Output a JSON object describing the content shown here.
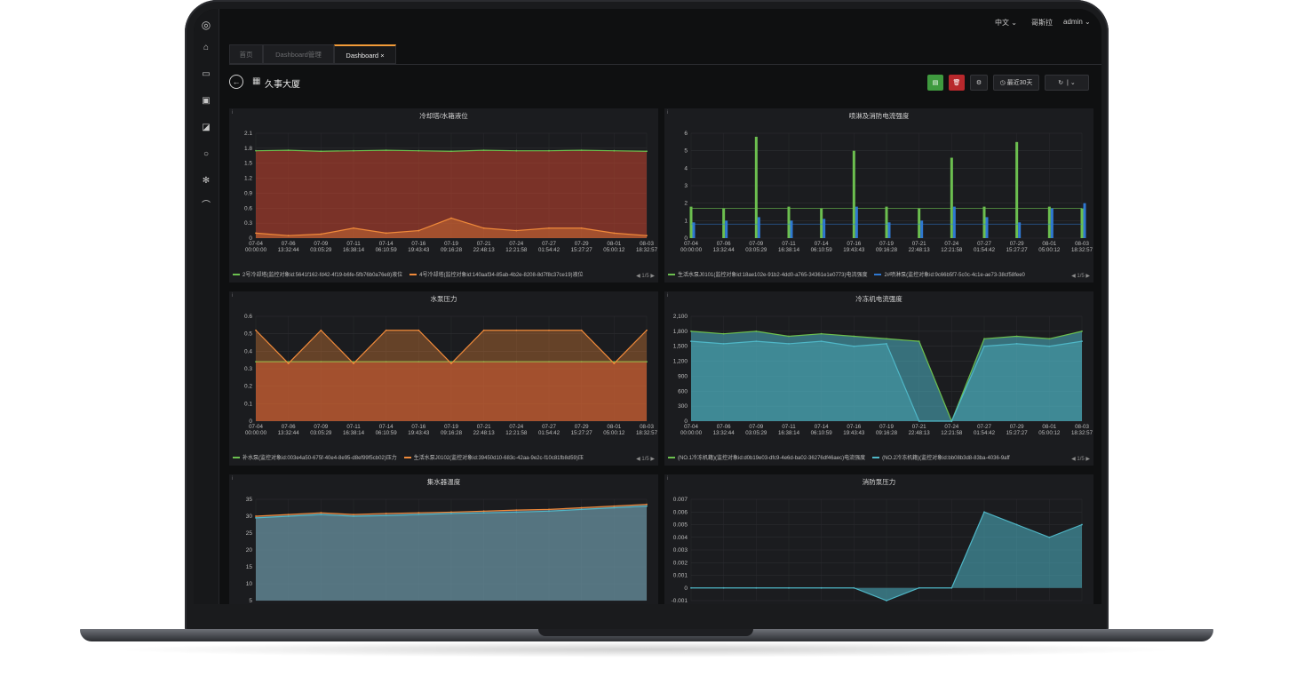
{
  "app": {
    "language": "中文",
    "org": "哥斯拉",
    "user": "admin"
  },
  "tabs": [
    {
      "label": "首页"
    },
    {
      "label": "Dashboard管理"
    },
    {
      "label": "Dashboard"
    }
  ],
  "title": "久事大厦",
  "toolbar": {
    "time_range": "最近30天"
  },
  "colors": {
    "green": "#6cbf4f",
    "orange": "#f08a3a",
    "red": "#c9452f",
    "blue": "#2f78d1",
    "cyan": "#4fb7c7",
    "yellow": "#e0b43a",
    "accent": "#f29b38"
  },
  "x_ticks": [
    "07-04 00:00:00",
    "07-06 13:32:44",
    "07-09 03:05:29",
    "07-11 16:38:14",
    "07-14 06:10:59",
    "07-16 19:43:43",
    "07-19 09:16:28",
    "07-21 22:48:13",
    "07-24 12:21:58",
    "07-27 01:54:42",
    "07-29 15:27:27",
    "08-01 05:00:12",
    "08-03 18:32:57"
  ],
  "chart_data": [
    {
      "type": "area",
      "title": "冷却塔/水箱液位",
      "ylim": [
        0,
        2.1
      ],
      "yticks": [
        "2.1",
        "1.8",
        "1.5",
        "1.2",
        "0.9",
        "0.6",
        "0.3",
        "0"
      ],
      "legend": [
        "2号冷却塔(监控对象id:5641f162-fd42-4f19-b6fe-5fb76b0a76e8)液位",
        "4号冷却塔(监控对象id:140aaf34-85ab-4b2e-8208-8d7f8c37ce19)液位"
      ],
      "pager": "1/5",
      "series": [
        {
          "values": [
            1.75,
            1.76,
            1.74,
            1.75,
            1.76,
            1.75,
            1.74,
            1.76,
            1.75,
            1.75,
            1.76,
            1.75,
            1.74
          ]
        },
        {
          "values": [
            0.1,
            0.05,
            0.08,
            0.2,
            0.1,
            0.15,
            0.4,
            0.2,
            0.15,
            0.2,
            0.2,
            0.1,
            0.05
          ]
        }
      ]
    },
    {
      "type": "bar",
      "title": "喷淋及消防电流强度",
      "ylim": [
        0,
        6
      ],
      "yticks": [
        "6",
        "5",
        "4",
        "3",
        "2",
        "1",
        "0"
      ],
      "legend": [
        "生活水泵J0101(监控对象id:18ae102e-91b2-4dd0-a765-34361e1e0773)电流强度",
        "2#喷淋泵(监控对象id:9c66b5f7-5c0c-4c1e-ae73-38cf58fee0"
      ],
      "pager": "1/5",
      "series": [
        {
          "values": [
            1.8,
            1.7,
            5.8,
            1.8,
            1.7,
            5.0,
            1.8,
            1.7,
            4.6,
            1.8,
            5.5,
            1.8,
            1.7
          ]
        },
        {
          "values": [
            0.9,
            1.0,
            1.2,
            1.0,
            1.1,
            1.8,
            0.9,
            1.0,
            1.8,
            1.2,
            0.9,
            1.7,
            2.0
          ]
        }
      ]
    },
    {
      "type": "area",
      "title": "水泵压力",
      "ylim": [
        0,
        0.6
      ],
      "yticks": [
        "0.6",
        "0.5",
        "0.4",
        "0.3",
        "0.2",
        "0.1",
        "0"
      ],
      "legend": [
        "补水泵(监控对象id:003e4a50-675f-40e4-8e95-d8ef99f5cb02)压力",
        "生活水泵J0102(监控对象id:39450d10-683c-42aa-9e2c-f10c81fb8d59)压"
      ],
      "pager": "1/5",
      "series": [
        {
          "values": [
            0.34,
            0.34,
            0.34,
            0.34,
            0.34,
            0.34,
            0.34,
            0.34,
            0.34,
            0.34,
            0.34,
            0.34,
            0.34
          ]
        },
        {
          "values": [
            0.52,
            0.33,
            0.52,
            0.33,
            0.52,
            0.52,
            0.33,
            0.52,
            0.52,
            0.52,
            0.52,
            0.33,
            0.52
          ]
        }
      ]
    },
    {
      "type": "area",
      "title": "冷冻机电流强度",
      "ylim": [
        0,
        2100
      ],
      "yticks": [
        "2,100",
        "1,800",
        "1,500",
        "1,200",
        "900",
        "600",
        "300",
        "0"
      ],
      "legend": [
        "(NO.1冷冻机籍)(监控对象id:d0b19e03-dfc9-4e6d-ba02-36276df46aec)电流强度",
        "(NO.2冷冻机籍)(监控对象id:bb08b3d8-83ba-4036-9aff"
      ],
      "pager": "1/5",
      "series": [
        {
          "values": [
            1800,
            1750,
            1800,
            1700,
            1750,
            1700,
            1650,
            1600,
            0,
            1650,
            1700,
            1650,
            1800
          ]
        },
        {
          "values": [
            1600,
            1550,
            1600,
            1550,
            1600,
            1500,
            1550,
            0,
            0,
            1500,
            1550,
            1500,
            1600
          ]
        }
      ]
    },
    {
      "type": "area",
      "title": "集水器温度",
      "ylim": [
        5,
        35
      ],
      "yticks": [
        "35",
        "30",
        "25",
        "20",
        "15",
        "10",
        "5"
      ],
      "series": [
        {
          "values": [
            30,
            30.5,
            31,
            30.5,
            30.8,
            31,
            31.2,
            31.5,
            31.8,
            32,
            32.5,
            33,
            33.5
          ]
        },
        {
          "values": [
            29.5,
            30,
            30.5,
            30,
            30.2,
            30.5,
            30.8,
            31,
            31.2,
            31.5,
            32,
            32.5,
            33
          ]
        }
      ]
    },
    {
      "type": "area",
      "title": "消防泵压力",
      "ylim": [
        -0.001,
        0.007
      ],
      "yticks": [
        "0.007",
        "0.006",
        "0.005",
        "0.004",
        "0.003",
        "0.002",
        "0.001",
        "0",
        "-0.001"
      ],
      "series": [
        {
          "values": [
            0,
            0,
            0,
            0,
            0,
            0,
            -0.001,
            0,
            0,
            0.006,
            0.005,
            0.004,
            0.005
          ]
        }
      ]
    }
  ]
}
